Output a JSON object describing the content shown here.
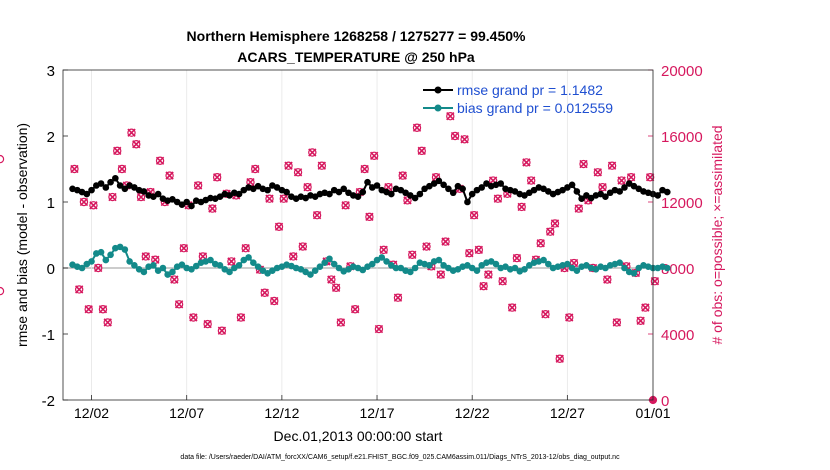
{
  "chart_data": {
    "type": "line",
    "title_line1": "Northern Hemisphere 1268258 / 1275277 = 99.450%",
    "title_line2": "ACARS_TEMPERATURE @ 250 hPa",
    "xlabel": "Dec.01,2013 00:00:00 start",
    "ylabel_left": "rmse and bias (model - observation)",
    "ylabel_right": "# of obs: o=possible; ×=assimilated",
    "footer": "data file: /Users/raeder/DAI/ATM_forcXX/CAM6_setup/f.e21.FHIST_BGC.f09_025.CAM6assim.011/Diags_NTrS_2013-12/obs_diag_output.nc",
    "xlim": [
      0.5,
      31.5
    ],
    "ylim_left": [
      -2,
      3
    ],
    "ylim_right": [
      0,
      20000
    ],
    "x_ticks": [
      2,
      7,
      12,
      17,
      22,
      27,
      32
    ],
    "x_tick_labels": [
      "12/02",
      "12/07",
      "12/12",
      "12/17",
      "12/22",
      "12/27",
      "01/01"
    ],
    "y_left_ticks": [
      -2,
      -1,
      0,
      1,
      2,
      3
    ],
    "y_left_tick_labels": [
      "-2",
      "-1",
      "0",
      "1",
      "2",
      "3"
    ],
    "y_right_ticks": [
      0,
      4000,
      8000,
      12000,
      16000,
      20000
    ],
    "y_right_tick_labels": [
      "0",
      "4000",
      "8000",
      "12000",
      "16000",
      "20000"
    ],
    "legend": [
      {
        "name": "rmse grand pr = 1.1482",
        "color": "#000000"
      },
      {
        "name": "bias grand pr = 0.012559",
        "color": "#138a8a"
      }
    ],
    "colors": {
      "rmse": "#000000",
      "bias": "#138a8a",
      "counts": "#d6185e",
      "text_legend": "#1f4fd1",
      "zero_line": "#bbbbbb"
    },
    "x_start": 1.0,
    "x_step": 0.25,
    "rmse": [
      1.2,
      1.18,
      1.15,
      1.12,
      1.18,
      1.25,
      1.28,
      1.22,
      1.3,
      1.36,
      1.25,
      1.2,
      1.25,
      1.22,
      1.18,
      1.16,
      1.1,
      1.08,
      1.12,
      1.05,
      1.02,
      1.04,
      1.0,
      0.96,
      1.0,
      0.94,
      1.02,
      1.0,
      1.03,
      1.06,
      1.05,
      1.08,
      1.12,
      1.1,
      1.14,
      1.12,
      1.18,
      1.22,
      1.2,
      1.24,
      1.2,
      1.18,
      1.25,
      1.22,
      1.18,
      1.15,
      1.08,
      1.05,
      1.08,
      1.06,
      1.1,
      1.08,
      1.12,
      1.14,
      1.12,
      1.18,
      1.15,
      1.2,
      1.14,
      1.1,
      1.08,
      1.15,
      1.3,
      1.22,
      1.25,
      1.18,
      1.15,
      1.12,
      1.2,
      1.18,
      1.14,
      1.1,
      1.06,
      1.12,
      1.2,
      1.24,
      1.28,
      1.32,
      1.26,
      1.2,
      1.14,
      1.24,
      1.2,
      1.0,
      1.12,
      1.18,
      1.22,
      1.28,
      1.24,
      1.26,
      1.28,
      1.2,
      1.18,
      1.16,
      1.12,
      1.1,
      1.14,
      1.18,
      1.22,
      1.2,
      1.16,
      1.12,
      1.15,
      1.18,
      1.22,
      1.26,
      1.16,
      1.05,
      1.1,
      1.06,
      1.1,
      1.12,
      1.08,
      1.14,
      1.18,
      1.16,
      1.22,
      1.28,
      1.24,
      1.2,
      1.16,
      1.14,
      1.12,
      1.1,
      1.18,
      1.15
    ],
    "bias": [
      0.05,
      0.02,
      0.0,
      0.06,
      0.1,
      0.22,
      0.24,
      0.12,
      0.2,
      0.3,
      0.32,
      0.28,
      0.1,
      0.04,
      -0.02,
      -0.06,
      0.02,
      0.04,
      -0.04,
      0.0,
      -0.1,
      -0.06,
      0.02,
      0.05,
      0.0,
      -0.02,
      0.03,
      0.08,
      0.1,
      0.12,
      0.06,
      0.04,
      -0.02,
      -0.06,
      0.0,
      0.04,
      0.12,
      0.16,
      0.08,
      0.02,
      -0.04,
      -0.08,
      -0.04,
      0.0,
      0.02,
      0.05,
      0.03,
      0.0,
      -0.02,
      -0.06,
      -0.1,
      -0.04,
      0.02,
      0.08,
      0.14,
      0.06,
      0.0,
      -0.05,
      -0.02,
      0.02,
      0.0,
      -0.03,
      0.02,
      0.06,
      0.12,
      0.16,
      0.1,
      0.04,
      0.0,
      0.0,
      -0.04,
      -0.06,
      0.0,
      0.08,
      0.06,
      0.04,
      0.1,
      0.12,
      0.04,
      0.0,
      -0.04,
      -0.02,
      0.02,
      0.04,
      0.0,
      -0.04,
      0.04,
      0.08,
      0.1,
      0.06,
      0.0,
      0.02,
      -0.02,
      0.0,
      -0.05,
      -0.02,
      0.04,
      0.08,
      0.1,
      0.12,
      0.06,
      0.0,
      0.02,
      0.04,
      0.06,
      0.0,
      -0.04,
      0.02,
      0.04,
      0.0,
      -0.02,
      0.02,
      0.0,
      0.04,
      0.06,
      0.08,
      0.0,
      -0.06,
      -0.08,
      0.0,
      0.04,
      0.02,
      0.0,
      0.0,
      0.02,
      0.0
    ],
    "obs_counts_x": [
      1.1,
      1.35,
      1.6,
      1.85,
      2.1,
      2.35,
      2.6,
      2.85,
      3.1,
      3.35,
      3.6,
      3.85,
      4.1,
      4.35,
      4.6,
      4.85,
      5.1,
      5.35,
      5.6,
      5.85,
      6.1,
      6.35,
      6.6,
      6.85,
      7.1,
      7.35,
      7.6,
      7.85,
      8.1,
      8.35,
      8.6,
      8.85,
      9.1,
      9.35,
      9.6,
      9.85,
      10.1,
      10.35,
      10.6,
      10.85,
      11.1,
      11.35,
      11.6,
      11.85,
      12.1,
      12.35,
      12.6,
      12.85,
      13.1,
      13.35,
      13.6,
      13.85,
      14.1,
      14.35,
      14.6,
      14.85,
      15.1,
      15.35,
      15.6,
      15.85,
      16.1,
      16.35,
      16.6,
      16.85,
      17.1,
      17.35,
      17.6,
      17.85,
      18.1,
      18.35,
      18.6,
      18.85,
      19.1,
      19.35,
      19.6,
      19.85,
      20.1,
      20.35,
      20.6,
      20.85,
      21.1,
      21.35,
      21.6,
      21.85,
      22.1,
      22.35,
      22.6,
      22.85,
      23.1,
      23.35,
      23.6,
      23.85,
      24.1,
      24.35,
      24.6,
      24.85,
      25.1,
      25.35,
      25.6,
      25.85,
      26.1,
      26.35,
      26.6,
      26.85,
      27.1,
      27.35,
      27.6,
      27.85,
      28.1,
      28.35,
      28.6,
      28.85,
      29.1,
      29.35,
      29.6,
      29.85,
      30.1,
      30.35,
      30.6,
      30.85,
      31.1,
      31.35,
      31.6
    ],
    "obs_counts": [
      14000,
      6700,
      12000,
      5500,
      11800,
      8000,
      5500,
      4700,
      12300,
      15100,
      14000,
      13000,
      16200,
      15500,
      12300,
      8700,
      12600,
      8500,
      14500,
      12000,
      13600,
      7300,
      5800,
      9200,
      11800,
      5000,
      13000,
      8700,
      4600,
      11600,
      13500,
      4200,
      12500,
      8400,
      12400,
      5000,
      9200,
      13200,
      14000,
      7900,
      6500,
      12200,
      6000,
      10500,
      12200,
      14200,
      8700,
      13800,
      9300,
      12900,
      15000,
      11200,
      14200,
      8400,
      7300,
      6800,
      4700,
      11800,
      8100,
      5500,
      12600,
      14000,
      11100,
      14800,
      4300,
      9100,
      12900,
      8200,
      6200,
      13600,
      12100,
      8800,
      16500,
      15100,
      9300,
      8100,
      13500,
      7600,
      9600,
      17200,
      16000,
      12800,
      15800,
      8900,
      11200,
      9100,
      6900,
      7600,
      13300,
      12200,
      7200,
      12500,
      5600,
      8600,
      11700,
      14400,
      13300,
      8500,
      9500,
      5200,
      10200,
      10700,
      2500,
      8000,
      5000,
      8300,
      11600,
      14300,
      12100,
      8000,
      13800,
      12900,
      7300,
      14200,
      4700,
      13300,
      8100,
      13500,
      7700,
      4800,
      5600,
      13500,
      7200,
      6600,
      14600
    ]
  }
}
